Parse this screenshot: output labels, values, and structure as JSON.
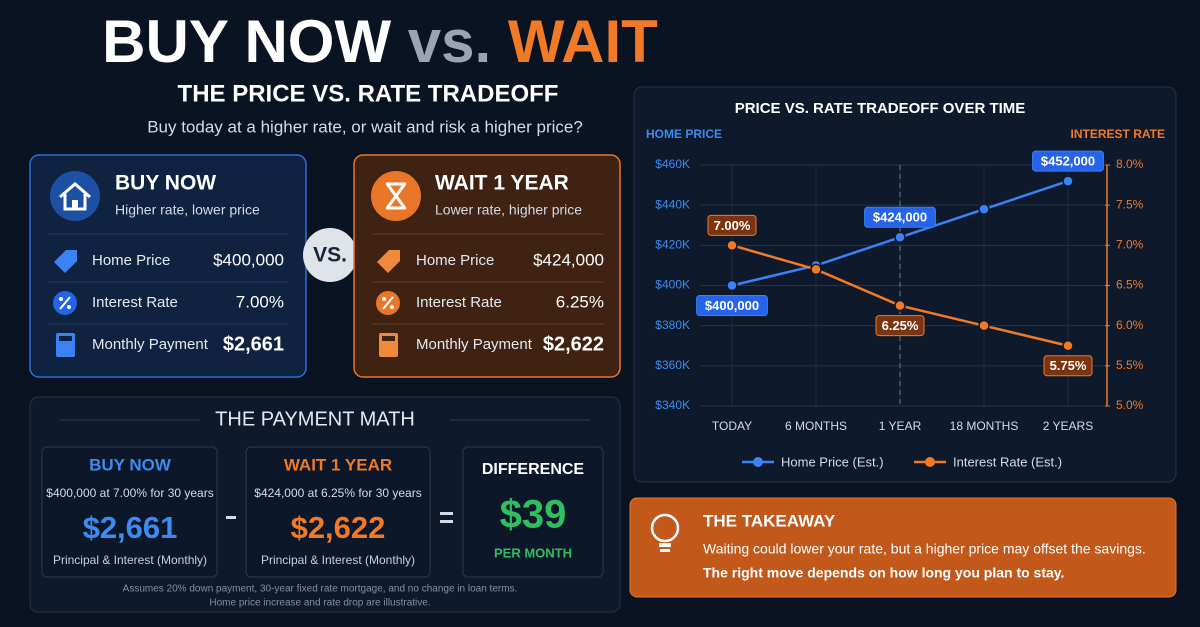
{
  "header": {
    "title_part1": "BUY NOW",
    "title_part2": "vs.",
    "title_part3": "WAIT",
    "subtitle": "THE PRICE VS. RATE TRADEOFF",
    "tagline": "Buy today at a higher rate, or wait and risk a higher price?"
  },
  "buy_now": {
    "title": "BUY NOW",
    "subtitle": "Higher rate, lower price",
    "rows": [
      [
        "Home Price",
        "$400,000"
      ],
      [
        "Interest Rate",
        "7.00%"
      ],
      [
        "Monthly Payment",
        "$2,661"
      ]
    ]
  },
  "vs": "VS.",
  "wait": {
    "title": "WAIT 1 YEAR",
    "subtitle": "Lower rate, higher price",
    "rows": [
      [
        "Home Price",
        "$424,000"
      ],
      [
        "Interest Rate",
        "6.25%"
      ],
      [
        "Monthly Payment",
        "$2,622"
      ]
    ]
  },
  "payment_math": {
    "title": "THE PAYMENT MATH",
    "buy": {
      "title": "BUY NOW",
      "terms": "$400,000 at 7.00% for 30 years",
      "payment": "$2,661",
      "note": "Principal & Interest (Monthly)"
    },
    "wait": {
      "title": "WAIT 1 YEAR",
      "terms": "$424,000 at 6.25% for 30 years",
      "payment": "$2,622",
      "note": "Principal & Interest (Monthly)"
    },
    "difference": {
      "title": "DIFFERENCE",
      "amount": "$39",
      "unit": "PER MONTH"
    },
    "footnote": [
      "Assumes 20% down payment, 30-year fixed rate mortgage, and no change in loan terms.",
      "Home price increase and rate drop are illustrative."
    ]
  },
  "chart_data": {
    "type": "line",
    "title": "PRICE VS. RATE TRADEOFF OVER TIME",
    "y_label": "HOME PRICE",
    "y2_label": "INTEREST RATE",
    "categories": [
      "TODAY",
      "6 MONTHS",
      "1 YEAR",
      "18 MONTHS",
      "2 YEARS"
    ],
    "series": [
      {
        "name": "Home Price (Est.)",
        "color": "#3b82f6",
        "values": [
          400000,
          410000,
          424000,
          438000,
          452000
        ],
        "value_labels": [
          "$400,000",
          null,
          "$424,000",
          null,
          "$452,000"
        ]
      },
      {
        "name": "Interest Rate (Est.)",
        "color": "#f07a26",
        "axis": "y2",
        "values": [
          7.0,
          6.7,
          6.25,
          6.0,
          5.75
        ],
        "value_labels": [
          "7.00%",
          null,
          "6.25%",
          null,
          "5.75%"
        ]
      }
    ],
    "ylim": [
      340000,
      460000
    ],
    "yticks": [
      {
        "value": 340000,
        "label": "$340K"
      },
      {
        "value": 360000,
        "label": "$360K"
      },
      {
        "value": 380000,
        "label": "$380K"
      },
      {
        "value": 400000,
        "label": "$400K"
      },
      {
        "value": 420000,
        "label": "$420K"
      },
      {
        "value": 440000,
        "label": "$440K"
      },
      {
        "value": 460000,
        "label": "$460K"
      }
    ],
    "y2lim": [
      5,
      8
    ],
    "y2ticks": [
      {
        "value": 5,
        "label": "5.0%"
      },
      {
        "value": 5.5,
        "label": "5.5%"
      },
      {
        "value": 6,
        "label": "6.0%"
      },
      {
        "value": 6.5,
        "label": "6.5%"
      },
      {
        "value": 7,
        "label": "7.0%"
      },
      {
        "value": 7.5,
        "label": "7.5%"
      },
      {
        "value": 8,
        "label": "8.0%"
      }
    ],
    "grid": true
  },
  "takeaway": {
    "title": "THE TAKEAWAY",
    "text": "Waiting could lower your rate, but a higher price may offset the savings.",
    "emphasis": "The right move depends on how long you plan to stay."
  }
}
